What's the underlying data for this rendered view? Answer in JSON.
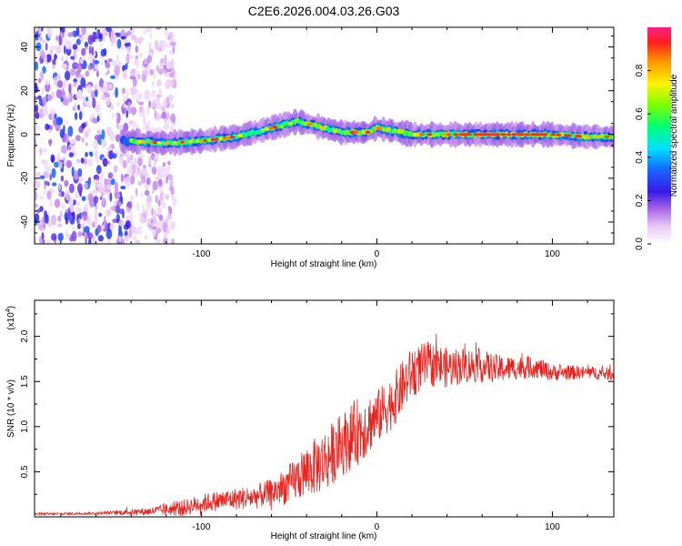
{
  "title": "C2E6.2026.004.03.26.G03",
  "colors": {
    "axis": "#000000",
    "snr_line": "#e8231e",
    "background": "#ffffff"
  },
  "chart_data": [
    {
      "type": "heatmap",
      "title": "C2E6.2026.004.03.26.G03",
      "xlabel": "Height of straight line (km)",
      "ylabel": "Frequency (Hz)",
      "xlim": [
        -195,
        135
      ],
      "ylim": [
        -50,
        49
      ],
      "xticks": [
        -100,
        0,
        100
      ],
      "xtick_labels": [
        "-100",
        "0",
        "100"
      ],
      "yticks": [
        -40,
        -20,
        0,
        20,
        40
      ],
      "ytick_labels": [
        "-40",
        "-20",
        "0",
        "20",
        "40"
      ],
      "colorbar": {
        "label": "Normalized spectral amplitude",
        "range": [
          0.0,
          1.0
        ],
        "ticks": [
          0.0,
          0.2,
          0.4,
          0.6,
          0.8
        ],
        "tick_labels": [
          "0.0",
          "0.2",
          "0.4",
          "0.6",
          "0.8"
        ]
      },
      "ridge": {
        "description_points_x": [
          -140,
          -120,
          -100,
          -80,
          -60,
          -45,
          -35,
          -20,
          -5,
          0,
          20,
          40,
          60,
          80,
          100,
          120,
          135
        ],
        "frequency_hz": [
          -3,
          -4,
          -3,
          -1,
          3,
          6,
          4,
          1,
          1,
          3,
          0,
          0,
          0,
          0,
          0,
          -1,
          -1
        ]
      },
      "noise_region_x": [
        -195,
        -125
      ]
    },
    {
      "type": "line",
      "xlabel": "Height of straight line (km)",
      "ylabel": "SNR (10 * v/v)",
      "y_scale_label": "(x10",
      "y_scale_exponent": "4",
      "xlim": [
        -195,
        135
      ],
      "ylim": [
        0,
        24000
      ],
      "xticks": [
        -100,
        0,
        100
      ],
      "xtick_labels": [
        "-100",
        "0",
        "100"
      ],
      "yticks": [
        5000,
        10000,
        15000,
        20000
      ],
      "ytick_labels": [
        "0.5",
        "1.0",
        "1.5",
        "2.0"
      ],
      "series": [
        {
          "name": "SNR",
          "x": [
            -195,
            -160,
            -130,
            -110,
            -100,
            -90,
            -80,
            -70,
            -60,
            -50,
            -40,
            -30,
            -20,
            -10,
            0,
            10,
            20,
            30,
            40,
            50,
            60,
            70,
            80,
            90,
            100,
            110,
            120,
            135
          ],
          "envelope": [
            300,
            400,
            600,
            1000,
            1500,
            1800,
            2000,
            2200,
            2700,
            3600,
            5000,
            6200,
            8000,
            9600,
            11000,
            13000,
            16000,
            17000,
            16500,
            16800,
            16700,
            16400,
            16500,
            16600,
            16000,
            16000,
            16000,
            15800
          ],
          "noise": [
            150,
            150,
            400,
            900,
            1000,
            1100,
            1200,
            1300,
            1500,
            2200,
            2800,
            3500,
            3500,
            3800,
            3000,
            3000,
            2800,
            2500,
            2200,
            2000,
            1800,
            1500,
            1300,
            1200,
            900,
            800,
            700,
            700
          ]
        }
      ]
    }
  ]
}
